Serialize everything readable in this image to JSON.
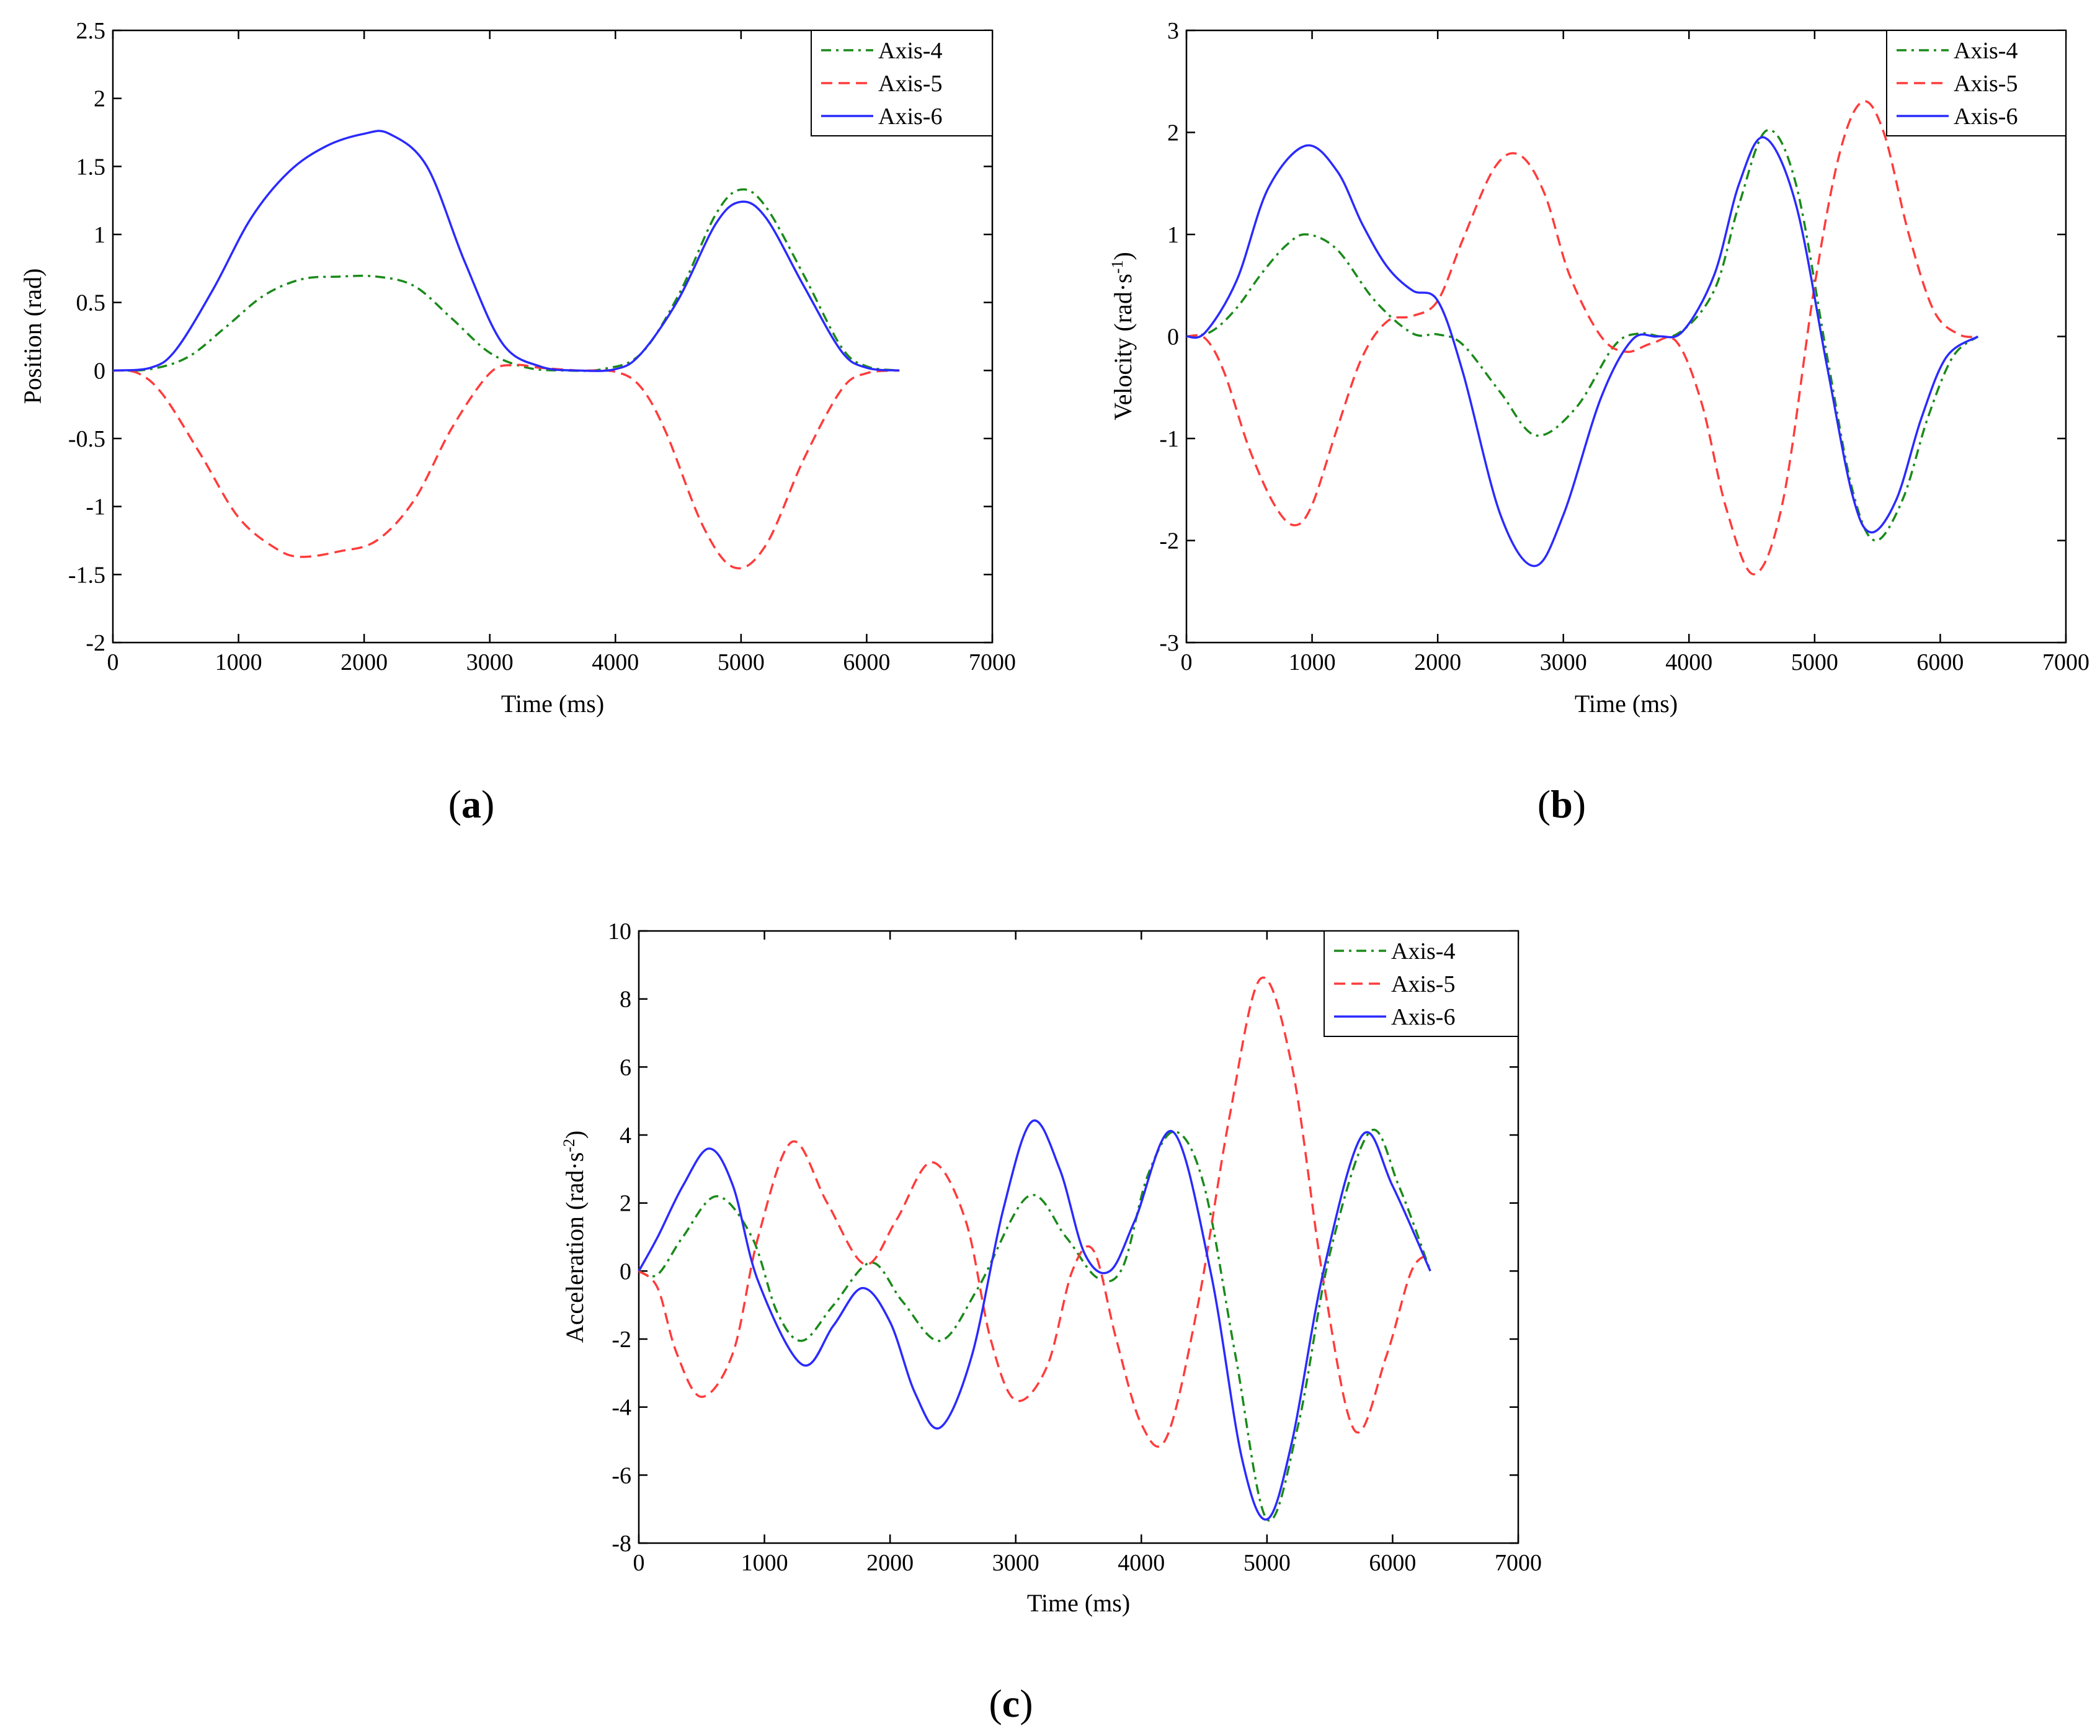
{
  "chart_data": [
    {
      "id": "a",
      "type": "line",
      "panel_label": "a",
      "xlabel": "Time (ms)",
      "ylabel": "Position (rad)",
      "xlim": [
        0,
        7000
      ],
      "ylim": [
        -2,
        2.5
      ],
      "xticks": [
        0,
        1000,
        2000,
        3000,
        4000,
        5000,
        6000,
        7000
      ],
      "yticks": [
        -2,
        -1.5,
        -1,
        -0.5,
        0,
        0.5,
        1,
        1.5,
        2,
        2.5
      ],
      "ytick_labels": [
        "-2",
        "-1.5",
        "-1",
        "-0.5",
        "0",
        "0.5",
        "1",
        "1.5",
        "2",
        "2.5"
      ],
      "grid": false,
      "legend_position": "top-right",
      "series": [
        {
          "name": "Axis-4",
          "color": "#1a8a1a",
          "dash": "dashdot",
          "x": [
            0,
            300,
            600,
            900,
            1200,
            1500,
            1800,
            2100,
            2400,
            2700,
            3000,
            3300,
            3600,
            3900,
            4200,
            4500,
            4800,
            5000,
            5200,
            5500,
            5800,
            6000,
            6260
          ],
          "y": [
            0,
            0.01,
            0.1,
            0.32,
            0.55,
            0.67,
            0.69,
            0.69,
            0.62,
            0.38,
            0.13,
            0.02,
            0,
            0.01,
            0.12,
            0.55,
            1.15,
            1.33,
            1.2,
            0.7,
            0.17,
            0.03,
            0
          ]
        },
        {
          "name": "Axis-5",
          "color": "#ff3b3b",
          "dash": "dashed",
          "x": [
            0,
            200,
            400,
            700,
            1000,
            1300,
            1500,
            1800,
            2100,
            2400,
            2700,
            3000,
            3200,
            3400,
            3700,
            4000,
            4200,
            4400,
            4700,
            4950,
            5200,
            5500,
            5800,
            6000,
            6260
          ],
          "y": [
            0,
            -0.02,
            -0.18,
            -0.62,
            -1.08,
            -1.31,
            -1.37,
            -1.33,
            -1.25,
            -0.95,
            -0.42,
            -0.02,
            0.04,
            0.02,
            0,
            -0.01,
            -0.12,
            -0.45,
            -1.15,
            -1.45,
            -1.28,
            -0.65,
            -0.14,
            -0.02,
            0
          ]
        },
        {
          "name": "Axis-6",
          "color": "#2a2aff",
          "dash": "solid",
          "x": [
            0,
            300,
            500,
            800,
            1100,
            1400,
            1700,
            2000,
            2200,
            2500,
            2800,
            3100,
            3400,
            3700,
            4000,
            4200,
            4500,
            4800,
            5000,
            5200,
            5500,
            5800,
            6000,
            6260
          ],
          "y": [
            0,
            0.02,
            0.15,
            0.6,
            1.12,
            1.46,
            1.65,
            1.74,
            1.74,
            1.5,
            0.8,
            0.2,
            0.03,
            0,
            0.01,
            0.12,
            0.52,
            1.08,
            1.24,
            1.12,
            0.62,
            0.14,
            0.02,
            0
          ]
        }
      ]
    },
    {
      "id": "b",
      "type": "line",
      "panel_label": "b",
      "xlabel": "Time (ms)",
      "ylabel": "Velocity (rad·s",
      "ylabel_sup": "-1",
      "ylabel_end": ")",
      "xlim": [
        0,
        7000
      ],
      "ylim": [
        -3,
        3
      ],
      "xticks": [
        0,
        1000,
        2000,
        3000,
        4000,
        5000,
        6000,
        7000
      ],
      "yticks": [
        -3,
        -2,
        -1,
        0,
        1,
        2,
        3
      ],
      "ytick_labels": [
        "-3",
        "-2",
        "-1",
        "0",
        "1",
        "2",
        "3"
      ],
      "grid": false,
      "legend_position": "top-right",
      "series": [
        {
          "name": "Axis-4",
          "color": "#1a8a1a",
          "dash": "dashdot",
          "x": [
            0,
            200,
            400,
            600,
            800,
            960,
            1200,
            1500,
            1800,
            2000,
            2200,
            2500,
            2780,
            3100,
            3400,
            3600,
            3900,
            4200,
            4400,
            4620,
            4850,
            5100,
            5300,
            5480,
            5700,
            5900,
            6100,
            6300
          ],
          "y": [
            0,
            0.05,
            0.28,
            0.62,
            0.9,
            1.0,
            0.85,
            0.35,
            0.03,
            0.02,
            -0.08,
            -0.55,
            -0.97,
            -0.7,
            -0.1,
            0.03,
            0.02,
            0.45,
            1.3,
            2.02,
            1.5,
            -0.2,
            -1.5,
            -2.0,
            -1.6,
            -0.8,
            -0.2,
            0
          ]
        },
        {
          "name": "Axis-5",
          "color": "#ff3b3b",
          "dash": "dashed",
          "x": [
            0,
            150,
            300,
            500,
            700,
            860,
            1000,
            1200,
            1400,
            1600,
            1800,
            2000,
            2200,
            2450,
            2650,
            2850,
            3050,
            3300,
            3500,
            3700,
            3900,
            4100,
            4300,
            4520,
            4750,
            5000,
            5200,
            5380,
            5550,
            5750,
            5950,
            6150,
            6300
          ],
          "y": [
            0,
            -0.02,
            -0.35,
            -1.1,
            -1.65,
            -1.85,
            -1.65,
            -0.9,
            -0.2,
            0.15,
            0.2,
            0.35,
            0.95,
            1.65,
            1.78,
            1.4,
            0.6,
            0,
            -0.15,
            -0.07,
            -0.05,
            -0.65,
            -1.7,
            -2.33,
            -1.6,
            0.5,
            1.8,
            2.3,
            2.0,
            1.0,
            0.25,
            0.02,
            0
          ]
        },
        {
          "name": "Axis-6",
          "color": "#2a2aff",
          "dash": "solid",
          "x": [
            0,
            150,
            400,
            650,
            950,
            1200,
            1400,
            1600,
            1800,
            2000,
            2200,
            2500,
            2770,
            3000,
            3300,
            3550,
            3750,
            3950,
            4200,
            4400,
            4600,
            4850,
            5100,
            5300,
            5450,
            5650,
            5850,
            6050,
            6300
          ],
          "y": [
            0,
            0.04,
            0.55,
            1.45,
            1.87,
            1.62,
            1.1,
            0.68,
            0.45,
            0.35,
            -0.35,
            -1.75,
            -2.25,
            -1.75,
            -0.6,
            -0.03,
            0.0,
            0.05,
            0.6,
            1.5,
            1.95,
            1.3,
            -0.3,
            -1.55,
            -1.92,
            -1.6,
            -0.8,
            -0.2,
            0
          ]
        }
      ]
    },
    {
      "id": "c",
      "type": "line",
      "panel_label": "c",
      "xlabel": "Time (ms)",
      "ylabel": "Acceleration (rad·s",
      "ylabel_sup": "-2",
      "ylabel_end": ")",
      "xlim": [
        0,
        7000
      ],
      "ylim": [
        -8,
        10
      ],
      "xticks": [
        0,
        1000,
        2000,
        3000,
        4000,
        5000,
        6000,
        7000
      ],
      "yticks": [
        -8,
        -6,
        -4,
        -2,
        0,
        2,
        4,
        6,
        8,
        10
      ],
      "ytick_labels": [
        "-8",
        "-6",
        "-4",
        "-2",
        "0",
        "2",
        "4",
        "6",
        "8",
        "10"
      ],
      "grid": false,
      "legend_position": "top-right",
      "series": [
        {
          "name": "Axis-4",
          "color": "#1a8a1a",
          "dash": "dashdot",
          "x": [
            0,
            150,
            350,
            620,
            900,
            1100,
            1300,
            1550,
            1850,
            2100,
            2400,
            2700,
            3100,
            3400,
            3650,
            3850,
            4050,
            4270,
            4500,
            4750,
            5000,
            5250,
            5500,
            5820,
            6050,
            6300
          ],
          "y": [
            0,
            -0.1,
            1.0,
            2.2,
            1.0,
            -1.2,
            -2.05,
            -1.0,
            0.25,
            -0.9,
            -2.05,
            -0.5,
            2.2,
            1.0,
            -0.2,
            0.1,
            2.8,
            4.1,
            2.5,
            -2.5,
            -7.3,
            -4.5,
            0.5,
            4.1,
            2.5,
            0
          ]
        },
        {
          "name": "Axis-5",
          "color": "#ff3b3b",
          "dash": "dashed",
          "x": [
            0,
            150,
            300,
            500,
            750,
            950,
            1220,
            1500,
            1800,
            2050,
            2330,
            2600,
            2800,
            3000,
            3250,
            3450,
            3620,
            3800,
            4000,
            4200,
            4450,
            4700,
            4950,
            5200,
            5450,
            5700,
            5950,
            6150,
            6300
          ],
          "y": [
            0,
            -0.5,
            -2.4,
            -3.7,
            -2.4,
            1.0,
            3.8,
            2.0,
            0.2,
            1.5,
            3.2,
            1.5,
            -2.0,
            -3.8,
            -2.8,
            0.0,
            0.6,
            -2.0,
            -4.5,
            -4.9,
            -1.0,
            4.5,
            8.6,
            6.0,
            -0.3,
            -4.7,
            -2.5,
            0.0,
            0.5
          ]
        },
        {
          "name": "Axis-6",
          "color": "#2a2aff",
          "dash": "solid",
          "x": [
            0,
            150,
            350,
            560,
            750,
            950,
            1300,
            1550,
            1780,
            2000,
            2200,
            2400,
            2650,
            2900,
            3130,
            3350,
            3550,
            3750,
            3950,
            4250,
            4550,
            4800,
            5000,
            5200,
            5450,
            5760,
            6000,
            6300
          ],
          "y": [
            0,
            1.0,
            2.5,
            3.6,
            2.5,
            -0.3,
            -2.75,
            -1.6,
            -0.5,
            -1.5,
            -3.6,
            -4.6,
            -2.5,
            1.8,
            4.4,
            3.0,
            0.5,
            0.0,
            1.5,
            4.1,
            0.0,
            -5.5,
            -7.3,
            -5.0,
            0.0,
            4.0,
            2.5,
            0
          ]
        }
      ]
    }
  ]
}
